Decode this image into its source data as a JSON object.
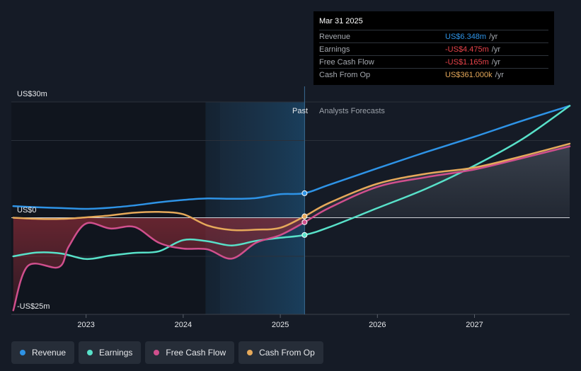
{
  "chart_data": {
    "type": "line",
    "y_labels": {
      "top": "US$30m",
      "zero": "US$0",
      "bottom": "-US$25m"
    },
    "ylim": [
      -25,
      30
    ],
    "xlim": [
      2022.23,
      2027.98
    ],
    "x_ticks": [
      {
        "value": 2023,
        "label": "2023"
      },
      {
        "value": 2024,
        "label": "2024"
      },
      {
        "value": 2025,
        "label": "2025"
      },
      {
        "value": 2026,
        "label": "2026"
      },
      {
        "value": 2027,
        "label": "2027"
      }
    ],
    "divider_x": 2025.25,
    "forecast_shade_start": 2024.23,
    "past_label": "Past",
    "forecast_label": "Analysts Forecasts",
    "series": [
      {
        "name": "Revenue",
        "color": "#2e93e6",
        "points": [
          [
            2022.25,
            3.0
          ],
          [
            2022.5,
            2.7
          ],
          [
            2022.75,
            2.5
          ],
          [
            2023.0,
            2.3
          ],
          [
            2023.25,
            2.6
          ],
          [
            2023.5,
            3.2
          ],
          [
            2023.75,
            4.0
          ],
          [
            2024.0,
            4.6
          ],
          [
            2024.25,
            5.0
          ],
          [
            2024.5,
            4.9
          ],
          [
            2024.75,
            5.1
          ],
          [
            2025.0,
            6.1
          ],
          [
            2025.25,
            6.348
          ],
          [
            2025.5,
            8.5
          ],
          [
            2026.0,
            12.8
          ],
          [
            2026.5,
            17.0
          ],
          [
            2027.0,
            21.0
          ],
          [
            2027.5,
            25.2
          ],
          [
            2027.98,
            29.0
          ]
        ]
      },
      {
        "name": "Earnings",
        "color": "#58e1c9",
        "points": [
          [
            2022.25,
            -10.0
          ],
          [
            2022.5,
            -9.0
          ],
          [
            2022.75,
            -9.3
          ],
          [
            2023.0,
            -10.7
          ],
          [
            2023.25,
            -9.8
          ],
          [
            2023.5,
            -9.1
          ],
          [
            2023.75,
            -8.7
          ],
          [
            2024.0,
            -5.8
          ],
          [
            2024.25,
            -6.1
          ],
          [
            2024.5,
            -7.2
          ],
          [
            2024.75,
            -6.0
          ],
          [
            2025.0,
            -5.2
          ],
          [
            2025.25,
            -4.475
          ],
          [
            2025.5,
            -2.5
          ],
          [
            2026.0,
            2.5
          ],
          [
            2026.5,
            7.5
          ],
          [
            2027.0,
            13.5
          ],
          [
            2027.5,
            20.5
          ],
          [
            2027.98,
            29.0
          ]
        ]
      },
      {
        "name": "Free Cash Flow",
        "color": "#d04f8d",
        "points": [
          [
            2022.25,
            -24.0
          ],
          [
            2022.4,
            -12.5
          ],
          [
            2022.72,
            -12.8
          ],
          [
            2022.82,
            -7.5
          ],
          [
            2023.0,
            -1.5
          ],
          [
            2023.25,
            -2.8
          ],
          [
            2023.5,
            -2.4
          ],
          [
            2023.75,
            -6.5
          ],
          [
            2024.0,
            -8.0
          ],
          [
            2024.25,
            -8.2
          ],
          [
            2024.5,
            -10.6
          ],
          [
            2024.75,
            -6.5
          ],
          [
            2025.0,
            -4.5
          ],
          [
            2025.25,
            -1.165
          ],
          [
            2025.5,
            2.5
          ],
          [
            2026.0,
            8.0
          ],
          [
            2026.5,
            10.5
          ],
          [
            2027.0,
            12.5
          ],
          [
            2027.5,
            15.5
          ],
          [
            2027.98,
            18.5
          ]
        ]
      },
      {
        "name": "Cash From Op",
        "color": "#e6a95a",
        "points": [
          [
            2022.25,
            0.0
          ],
          [
            2022.5,
            -0.3
          ],
          [
            2022.75,
            -0.3
          ],
          [
            2023.0,
            0.1
          ],
          [
            2023.25,
            0.6
          ],
          [
            2023.5,
            1.3
          ],
          [
            2023.75,
            1.5
          ],
          [
            2024.0,
            0.9
          ],
          [
            2024.25,
            -2.0
          ],
          [
            2024.5,
            -3.2
          ],
          [
            2024.75,
            -3.1
          ],
          [
            2025.0,
            -2.6
          ],
          [
            2025.25,
            0.361
          ],
          [
            2025.5,
            3.8
          ],
          [
            2026.0,
            8.8
          ],
          [
            2026.5,
            11.4
          ],
          [
            2027.0,
            13.0
          ],
          [
            2027.5,
            16.0
          ],
          [
            2027.98,
            19.2
          ]
        ]
      }
    ]
  },
  "tooltip": {
    "date": "Mar 31 2025",
    "rows": [
      {
        "label": "Revenue",
        "value": "US$6.348m",
        "unit": "/yr",
        "color": "#2e93e6"
      },
      {
        "label": "Earnings",
        "value": "-US$4.475m",
        "unit": "/yr",
        "color": "#e8434a"
      },
      {
        "label": "Free Cash Flow",
        "value": "-US$1.165m",
        "unit": "/yr",
        "color": "#e8434a"
      },
      {
        "label": "Cash From Op",
        "value": "US$361.000k",
        "unit": "/yr",
        "color": "#e6a95a"
      }
    ]
  },
  "legend": [
    {
      "label": "Revenue",
      "color": "#2e93e6"
    },
    {
      "label": "Earnings",
      "color": "#58e1c9"
    },
    {
      "label": "Free Cash Flow",
      "color": "#d04f8d"
    },
    {
      "label": "Cash From Op",
      "color": "#e6a95a"
    }
  ]
}
